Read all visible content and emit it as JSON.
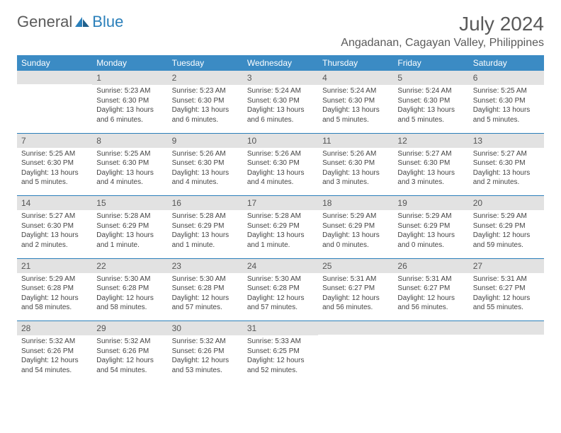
{
  "logo": {
    "general": "General",
    "blue": "Blue"
  },
  "title": "July 2024",
  "location": "Angadanan, Cagayan Valley, Philippines",
  "colors": {
    "header_bg": "#3b8bc4",
    "header_fg": "#ffffff",
    "daynum_bg": "#e2e2e2",
    "sep": "#2a7fba",
    "text": "#444444",
    "title": "#5a5a5a"
  },
  "day_headers": [
    "Sunday",
    "Monday",
    "Tuesday",
    "Wednesday",
    "Thursday",
    "Friday",
    "Saturday"
  ],
  "weeks": [
    [
      null,
      {
        "n": "1",
        "sunrise": "5:23 AM",
        "sunset": "6:30 PM",
        "daylight": "13 hours and 6 minutes."
      },
      {
        "n": "2",
        "sunrise": "5:23 AM",
        "sunset": "6:30 PM",
        "daylight": "13 hours and 6 minutes."
      },
      {
        "n": "3",
        "sunrise": "5:24 AM",
        "sunset": "6:30 PM",
        "daylight": "13 hours and 6 minutes."
      },
      {
        "n": "4",
        "sunrise": "5:24 AM",
        "sunset": "6:30 PM",
        "daylight": "13 hours and 5 minutes."
      },
      {
        "n": "5",
        "sunrise": "5:24 AM",
        "sunset": "6:30 PM",
        "daylight": "13 hours and 5 minutes."
      },
      {
        "n": "6",
        "sunrise": "5:25 AM",
        "sunset": "6:30 PM",
        "daylight": "13 hours and 5 minutes."
      }
    ],
    [
      {
        "n": "7",
        "sunrise": "5:25 AM",
        "sunset": "6:30 PM",
        "daylight": "13 hours and 5 minutes."
      },
      {
        "n": "8",
        "sunrise": "5:25 AM",
        "sunset": "6:30 PM",
        "daylight": "13 hours and 4 minutes."
      },
      {
        "n": "9",
        "sunrise": "5:26 AM",
        "sunset": "6:30 PM",
        "daylight": "13 hours and 4 minutes."
      },
      {
        "n": "10",
        "sunrise": "5:26 AM",
        "sunset": "6:30 PM",
        "daylight": "13 hours and 4 minutes."
      },
      {
        "n": "11",
        "sunrise": "5:26 AM",
        "sunset": "6:30 PM",
        "daylight": "13 hours and 3 minutes."
      },
      {
        "n": "12",
        "sunrise": "5:27 AM",
        "sunset": "6:30 PM",
        "daylight": "13 hours and 3 minutes."
      },
      {
        "n": "13",
        "sunrise": "5:27 AM",
        "sunset": "6:30 PM",
        "daylight": "13 hours and 2 minutes."
      }
    ],
    [
      {
        "n": "14",
        "sunrise": "5:27 AM",
        "sunset": "6:30 PM",
        "daylight": "13 hours and 2 minutes."
      },
      {
        "n": "15",
        "sunrise": "5:28 AM",
        "sunset": "6:29 PM",
        "daylight": "13 hours and 1 minute."
      },
      {
        "n": "16",
        "sunrise": "5:28 AM",
        "sunset": "6:29 PM",
        "daylight": "13 hours and 1 minute."
      },
      {
        "n": "17",
        "sunrise": "5:28 AM",
        "sunset": "6:29 PM",
        "daylight": "13 hours and 1 minute."
      },
      {
        "n": "18",
        "sunrise": "5:29 AM",
        "sunset": "6:29 PM",
        "daylight": "13 hours and 0 minutes."
      },
      {
        "n": "19",
        "sunrise": "5:29 AM",
        "sunset": "6:29 PM",
        "daylight": "13 hours and 0 minutes."
      },
      {
        "n": "20",
        "sunrise": "5:29 AM",
        "sunset": "6:29 PM",
        "daylight": "12 hours and 59 minutes."
      }
    ],
    [
      {
        "n": "21",
        "sunrise": "5:29 AM",
        "sunset": "6:28 PM",
        "daylight": "12 hours and 58 minutes."
      },
      {
        "n": "22",
        "sunrise": "5:30 AM",
        "sunset": "6:28 PM",
        "daylight": "12 hours and 58 minutes."
      },
      {
        "n": "23",
        "sunrise": "5:30 AM",
        "sunset": "6:28 PM",
        "daylight": "12 hours and 57 minutes."
      },
      {
        "n": "24",
        "sunrise": "5:30 AM",
        "sunset": "6:28 PM",
        "daylight": "12 hours and 57 minutes."
      },
      {
        "n": "25",
        "sunrise": "5:31 AM",
        "sunset": "6:27 PM",
        "daylight": "12 hours and 56 minutes."
      },
      {
        "n": "26",
        "sunrise": "5:31 AM",
        "sunset": "6:27 PM",
        "daylight": "12 hours and 56 minutes."
      },
      {
        "n": "27",
        "sunrise": "5:31 AM",
        "sunset": "6:27 PM",
        "daylight": "12 hours and 55 minutes."
      }
    ],
    [
      {
        "n": "28",
        "sunrise": "5:32 AM",
        "sunset": "6:26 PM",
        "daylight": "12 hours and 54 minutes."
      },
      {
        "n": "29",
        "sunrise": "5:32 AM",
        "sunset": "6:26 PM",
        "daylight": "12 hours and 54 minutes."
      },
      {
        "n": "30",
        "sunrise": "5:32 AM",
        "sunset": "6:26 PM",
        "daylight": "12 hours and 53 minutes."
      },
      {
        "n": "31",
        "sunrise": "5:33 AM",
        "sunset": "6:25 PM",
        "daylight": "12 hours and 52 minutes."
      },
      null,
      null,
      null
    ]
  ],
  "labels": {
    "sunrise": "Sunrise: ",
    "sunset": "Sunset: ",
    "daylight": "Daylight: "
  }
}
